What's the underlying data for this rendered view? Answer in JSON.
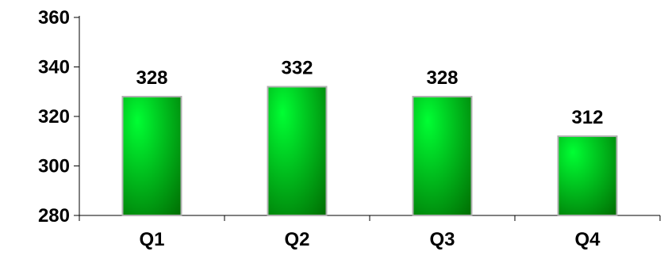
{
  "chart_data": {
    "type": "bar",
    "categories": [
      "Q1",
      "Q2",
      "Q3",
      "Q4"
    ],
    "values": [
      328,
      332,
      328,
      312
    ],
    "data_labels": [
      "328",
      "332",
      "328",
      "312"
    ],
    "title": "",
    "xlabel": "",
    "ylabel": "",
    "ylim": [
      280,
      360
    ],
    "yticks": [
      280,
      300,
      320,
      340,
      360
    ],
    "ytick_labels": [
      "280",
      "300",
      "320",
      "340",
      "360"
    ],
    "grid": false,
    "legend": "none",
    "bar_color_light": "#00ff33",
    "bar_color_dark": "#006600",
    "bar_border_color": "#b0b0b0",
    "axis_color": "#000000"
  }
}
